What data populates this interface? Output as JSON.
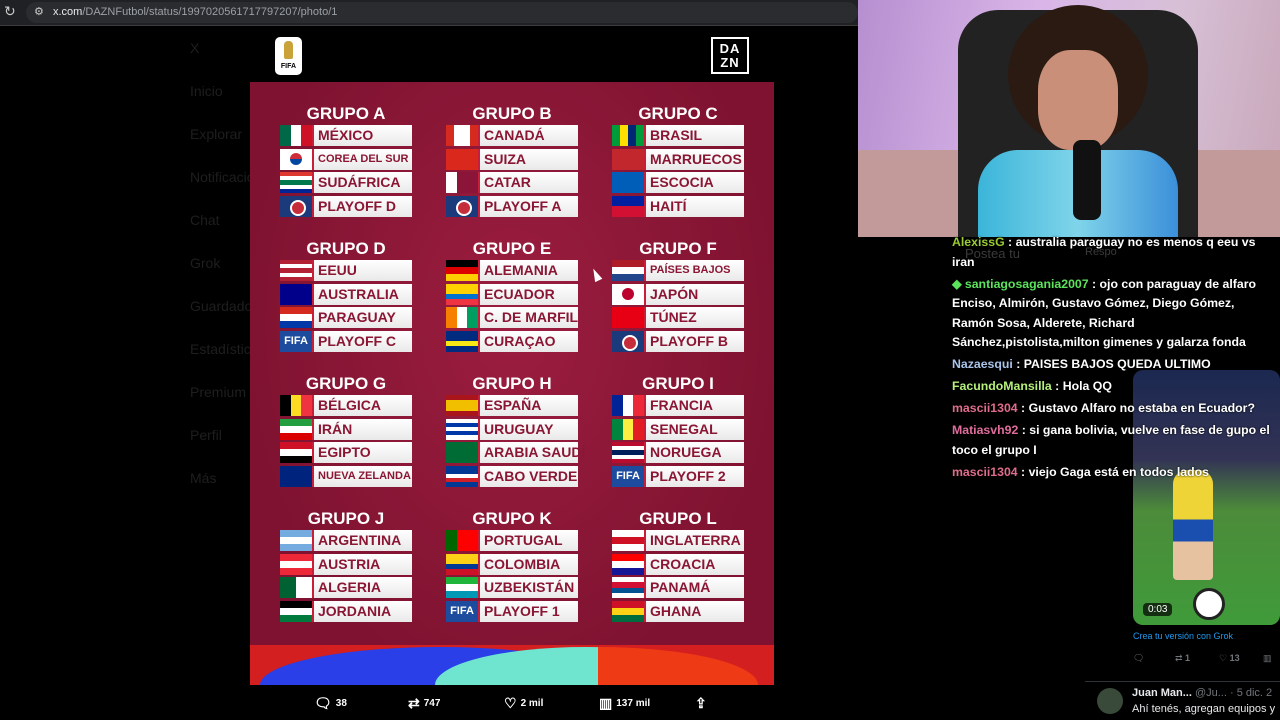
{
  "browser": {
    "url_host": "x.com",
    "url_path": "/DAZNFutbol/status/1997020561717797207/photo/1"
  },
  "x_sidebar": {
    "items": [
      "X",
      "Inicio",
      "Explorar",
      "Notificaciones",
      "Chat",
      "Grok",
      "Guardados",
      "Estadísticas",
      "Premium",
      "Perfil",
      "Más"
    ]
  },
  "poster": {
    "logos": {
      "fifa": "FIFA",
      "dazn": "DA ZN"
    },
    "groups": [
      {
        "title": "GRUPO A",
        "teams": [
          {
            "name": "MÉXICO",
            "flag": {
              "dir": "v",
              "colors": [
                "#006847",
                "#ffffff",
                "#ce1126"
              ]
            }
          },
          {
            "name": "COREA DEL SUR",
            "small": true,
            "flag": {
              "dir": "korea",
              "colors": [
                "#ffffff",
                "#cd2e3a",
                "#0047a0"
              ]
            }
          },
          {
            "name": "SUDÁFRICA",
            "flag": {
              "dir": "h",
              "colors": [
                "#de3831",
                "#ffffff",
                "#007a4d",
                "#ffffff",
                "#002395"
              ]
            }
          },
          {
            "name": "PLAYOFF D",
            "flag": {
              "type": "uefa"
            }
          }
        ]
      },
      {
        "title": "GRUPO B",
        "teams": [
          {
            "name": "CANADÁ",
            "flag": {
              "dir": "v",
              "colors": [
                "#d52b1e",
                "#ffffff",
                "#ffffff",
                "#d52b1e"
              ]
            }
          },
          {
            "name": "SUIZA",
            "flag": {
              "dir": "v",
              "colors": [
                "#da291c"
              ]
            }
          },
          {
            "name": "CATAR",
            "flag": {
              "dir": "v",
              "colors": [
                "#ffffff",
                "#8a1538",
                "#8a1538"
              ]
            }
          },
          {
            "name": "PLAYOFF A",
            "flag": {
              "type": "uefa"
            }
          }
        ]
      },
      {
        "title": "GRUPO C",
        "teams": [
          {
            "name": "BRASIL",
            "flag": {
              "dir": "v",
              "colors": [
                "#009c3b",
                "#ffdf00",
                "#002776",
                "#009c3b"
              ]
            }
          },
          {
            "name": "MARRUECOS",
            "flag": {
              "dir": "v",
              "colors": [
                "#c1272d"
              ]
            }
          },
          {
            "name": "ESCOCIA",
            "flag": {
              "dir": "v",
              "colors": [
                "#005eb8"
              ]
            }
          },
          {
            "name": "HAITÍ",
            "flag": {
              "dir": "h",
              "colors": [
                "#00209f",
                "#d21034"
              ]
            }
          }
        ]
      },
      {
        "title": "GRUPO D",
        "teams": [
          {
            "name": "EEUU",
            "flag": {
              "dir": "h",
              "colors": [
                "#b22234",
                "#ffffff",
                "#b22234",
                "#ffffff",
                "#b22234"
              ]
            }
          },
          {
            "name": "AUSTRALIA",
            "flag": {
              "dir": "v",
              "colors": [
                "#00008b"
              ]
            }
          },
          {
            "name": "PARAGUAY",
            "flag": {
              "dir": "h",
              "colors": [
                "#d52b1e",
                "#ffffff",
                "#0038a8"
              ]
            }
          },
          {
            "name": "PLAYOFF C",
            "flag": {
              "type": "fifa"
            }
          }
        ]
      },
      {
        "title": "GRUPO E",
        "teams": [
          {
            "name": "ALEMANIA",
            "flag": {
              "dir": "h",
              "colors": [
                "#000000",
                "#dd0000",
                "#ffce00"
              ]
            }
          },
          {
            "name": "ECUADOR",
            "flag": {
              "dir": "h",
              "colors": [
                "#ffd100",
                "#ffd100",
                "#0072ce",
                "#ef3340"
              ]
            }
          },
          {
            "name": "C. DE MARFIL",
            "flag": {
              "dir": "v",
              "colors": [
                "#f77f00",
                "#ffffff",
                "#009e60"
              ]
            }
          },
          {
            "name": "CURAÇAO",
            "flag": {
              "dir": "h",
              "colors": [
                "#002b7f",
                "#002b7f",
                "#f9e814",
                "#002b7f"
              ]
            }
          }
        ]
      },
      {
        "title": "GRUPO F",
        "teams": [
          {
            "name": "PAÍSES BAJOS",
            "small": true,
            "flag": {
              "dir": "h",
              "colors": [
                "#ae1c28",
                "#ffffff",
                "#21468b"
              ]
            }
          },
          {
            "name": "JAPÓN",
            "flag": {
              "dir": "japan",
              "colors": [
                "#ffffff",
                "#bc002d"
              ]
            }
          },
          {
            "name": "TÚNEZ",
            "flag": {
              "dir": "v",
              "colors": [
                "#e70013"
              ]
            }
          },
          {
            "name": "PLAYOFF B",
            "flag": {
              "type": "uefa"
            }
          }
        ]
      },
      {
        "title": "GRUPO G",
        "teams": [
          {
            "name": "BÉLGICA",
            "flag": {
              "dir": "v",
              "colors": [
                "#000000",
                "#fdda24",
                "#ef3340"
              ]
            }
          },
          {
            "name": "IRÁN",
            "flag": {
              "dir": "h",
              "colors": [
                "#239f40",
                "#ffffff",
                "#da0000"
              ]
            }
          },
          {
            "name": "EGIPTO",
            "flag": {
              "dir": "h",
              "colors": [
                "#ce1126",
                "#ffffff",
                "#000000"
              ]
            }
          },
          {
            "name": "NUEVA ZELANDA",
            "small": true,
            "flag": {
              "dir": "v",
              "colors": [
                "#00247d"
              ]
            }
          }
        ]
      },
      {
        "title": "GRUPO H",
        "teams": [
          {
            "name": "ESPAÑA",
            "flag": {
              "dir": "h",
              "colors": [
                "#aa151b",
                "#f1bf00",
                "#f1bf00",
                "#aa151b"
              ]
            }
          },
          {
            "name": "URUGUAY",
            "flag": {
              "dir": "h",
              "colors": [
                "#ffffff",
                "#0038a8",
                "#ffffff",
                "#0038a8",
                "#ffffff"
              ]
            }
          },
          {
            "name": "ARABIA SAUDÍ",
            "flag": {
              "dir": "v",
              "colors": [
                "#006c35"
              ]
            }
          },
          {
            "name": "CABO VERDE",
            "flag": {
              "dir": "h",
              "colors": [
                "#003893",
                "#003893",
                "#ffffff",
                "#cf2027",
                "#003893"
              ]
            }
          }
        ]
      },
      {
        "title": "GRUPO I",
        "teams": [
          {
            "name": "FRANCIA",
            "flag": {
              "dir": "v",
              "colors": [
                "#002395",
                "#ffffff",
                "#ed2939"
              ]
            }
          },
          {
            "name": "SENEGAL",
            "flag": {
              "dir": "v",
              "colors": [
                "#00853f",
                "#fdef42",
                "#e31b23"
              ]
            }
          },
          {
            "name": "NORUEGA",
            "flag": {
              "dir": "h",
              "colors": [
                "#ba0c2f",
                "#ffffff",
                "#00205b",
                "#ffffff",
                "#ba0c2f"
              ]
            }
          },
          {
            "name": "PLAYOFF 2",
            "flag": {
              "type": "fifa"
            }
          }
        ]
      },
      {
        "title": "GRUPO J",
        "teams": [
          {
            "name": "ARGENTINA",
            "flag": {
              "dir": "h",
              "colors": [
                "#74acdf",
                "#ffffff",
                "#74acdf"
              ]
            }
          },
          {
            "name": "AUSTRIA",
            "flag": {
              "dir": "h",
              "colors": [
                "#ed2939",
                "#ffffff",
                "#ed2939"
              ]
            }
          },
          {
            "name": "ALGERIA",
            "flag": {
              "dir": "v",
              "colors": [
                "#006233",
                "#ffffff"
              ]
            }
          },
          {
            "name": "JORDANIA",
            "flag": {
              "dir": "h",
              "colors": [
                "#000000",
                "#ffffff",
                "#007a3d"
              ]
            }
          }
        ]
      },
      {
        "title": "GRUPO K",
        "teams": [
          {
            "name": "PORTUGAL",
            "flag": {
              "dir": "v",
              "colors": [
                "#006600",
                "#ff0000",
                "#ff0000"
              ]
            }
          },
          {
            "name": "COLOMBIA",
            "flag": {
              "dir": "h",
              "colors": [
                "#fcd116",
                "#fcd116",
                "#003893",
                "#ce1126"
              ]
            }
          },
          {
            "name": "UZBEKISTÁN",
            "flag": {
              "dir": "h",
              "colors": [
                "#1eb53a",
                "#ffffff",
                "#0099b5"
              ]
            }
          },
          {
            "name": "PLAYOFF 1",
            "flag": {
              "type": "fifa"
            }
          }
        ]
      },
      {
        "title": "GRUPO L",
        "teams": [
          {
            "name": "INGLATERRA",
            "flag": {
              "dir": "h",
              "colors": [
                "#ffffff",
                "#ce1124",
                "#ffffff"
              ]
            }
          },
          {
            "name": "CROACIA",
            "flag": {
              "dir": "h",
              "colors": [
                "#ff0000",
                "#ffffff",
                "#171796"
              ]
            }
          },
          {
            "name": "PANAMÁ",
            "flag": {
              "dir": "h",
              "colors": [
                "#ffffff",
                "#d21034",
                "#005293",
                "#ffffff"
              ]
            }
          },
          {
            "name": "GHANA",
            "flag": {
              "dir": "h",
              "colors": [
                "#ce1126",
                "#fcd116",
                "#006b3f"
              ]
            }
          }
        ]
      }
    ]
  },
  "tweet_actions": {
    "replies": "38",
    "reposts": "747",
    "likes": "2 mil",
    "views": "137 mil"
  },
  "chat": [
    {
      "user": "AlexissG",
      "color": "#9acd32",
      "text": "australia paraguay no es menos q eeu vs iran"
    },
    {
      "user": "santiagosagania2007",
      "color": "#5be35b",
      "badge": true,
      "text": "ojo con paraguay de alfaro Enciso, Almirón, Gustavo Gómez, Diego Gómez, Ramón Sosa, Alderete, Richard Sánchez,pistolista,milton gimenes y galarza fonda"
    },
    {
      "user": "Nazaesqui",
      "color": "#a9c4e8",
      "text": "PAISES BAJOS QUEDA ULTIMO"
    },
    {
      "user": "FacundoMansilla",
      "color": "#b4f07a",
      "text": "Hola QQ"
    },
    {
      "user": "mascii1304",
      "color": "#e06c8c",
      "text": "Gustavo Alfaro no estaba en Ecuador?"
    },
    {
      "user": "Matiasvh92",
      "color": "#e06c9c",
      "text": "si gana bolivia, vuelve en fase de gupo el toco el grupo I"
    },
    {
      "user": "mascii1304",
      "color": "#e06c8c",
      "text": "viejo Gaga está en todos lados"
    }
  ],
  "side_tweet": {
    "video_time": "0:03",
    "grok_link": "Crea tu versión con Grok",
    "reposts": "1",
    "likes": "13",
    "reply_name": "Juan Man...",
    "reply_handle": "@Ju... · 5 dic. 2",
    "reply_text": "Ahí tenés, agregan equipos y"
  },
  "background_page": {
    "compose_placeholder": "Postea tu",
    "reply_button": "Respo"
  }
}
